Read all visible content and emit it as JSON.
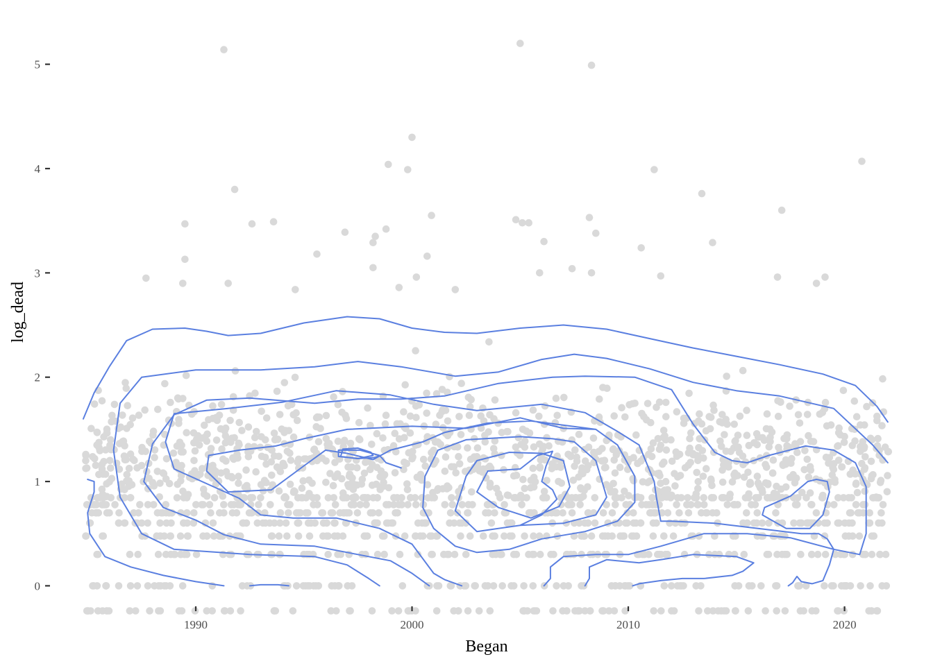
{
  "chart_data": {
    "type": "scatter",
    "overlay": "2d-density-contour",
    "xlabel": "Began",
    "ylabel": "log_dead",
    "xlim": [
      1984.8,
      2022.1
    ],
    "ylim": [
      -0.25,
      5.35
    ],
    "x_ticks": [
      1990,
      2000,
      2010,
      2020
    ],
    "y_ticks": [
      0,
      1,
      2,
      3,
      4,
      5
    ],
    "grid": false,
    "legend": "none",
    "colors": {
      "points": "#d9d9d9",
      "contour": "#5a7fe0",
      "text": "#4d4d4d"
    },
    "outlier_points": [
      [
        1991.3,
        5.14
      ],
      [
        2005.0,
        5.2
      ],
      [
        2008.3,
        4.99
      ],
      [
        2000.0,
        4.3
      ],
      [
        1998.9,
        4.04
      ],
      [
        1999.8,
        3.99
      ],
      [
        2020.8,
        4.07
      ],
      [
        2011.2,
        3.99
      ],
      [
        1991.8,
        3.8
      ],
      [
        1989.5,
        3.47
      ],
      [
        1992.6,
        3.47
      ],
      [
        1993.6,
        3.49
      ],
      [
        2013.4,
        3.76
      ],
      [
        2017.1,
        3.6
      ],
      [
        2000.9,
        3.55
      ],
      [
        1996.9,
        3.39
      ],
      [
        1998.3,
        3.35
      ],
      [
        1998.2,
        3.29
      ],
      [
        1998.8,
        3.42
      ],
      [
        2004.8,
        3.51
      ],
      [
        2005.1,
        3.48
      ],
      [
        2005.4,
        3.48
      ],
      [
        2008.2,
        3.53
      ],
      [
        2008.5,
        3.38
      ],
      [
        2013.9,
        3.29
      ],
      [
        2006.1,
        3.3
      ],
      [
        2005.9,
        3.0
      ],
      [
        2000.7,
        3.16
      ],
      [
        2010.6,
        3.24
      ],
      [
        1995.6,
        3.18
      ],
      [
        1989.5,
        3.13
      ],
      [
        1998.2,
        3.05
      ],
      [
        2016.9,
        2.96
      ],
      [
        2019.1,
        2.96
      ],
      [
        2018.7,
        2.9
      ],
      [
        1989.4,
        2.9
      ],
      [
        1987.7,
        2.95
      ],
      [
        1991.5,
        2.9
      ],
      [
        2000.2,
        2.96
      ],
      [
        2008.3,
        3.0
      ],
      [
        1994.6,
        2.84
      ],
      [
        1999.4,
        2.86
      ],
      [
        2002.0,
        2.84
      ],
      [
        2011.5,
        2.97
      ],
      [
        2007.4,
        3.04
      ]
    ],
    "contours": [
      {
        "level": 1,
        "points": [
          [
            1984.8,
            1.6
          ],
          [
            1985.3,
            1.85
          ],
          [
            1986.0,
            2.1
          ],
          [
            1986.8,
            2.35
          ],
          [
            1988.0,
            2.46
          ],
          [
            1989.5,
            2.47
          ],
          [
            1990.5,
            2.44
          ],
          [
            1991.5,
            2.4
          ],
          [
            1993.0,
            2.42
          ],
          [
            1995.0,
            2.52
          ],
          [
            1997.0,
            2.58
          ],
          [
            1998.5,
            2.56
          ],
          [
            2000.0,
            2.47
          ],
          [
            2001.5,
            2.43
          ],
          [
            2003.0,
            2.42
          ],
          [
            2005.0,
            2.47
          ],
          [
            2007.0,
            2.5
          ],
          [
            2009.0,
            2.46
          ],
          [
            2011.0,
            2.37
          ],
          [
            2013.0,
            2.28
          ],
          [
            2015.0,
            2.2
          ],
          [
            2017.0,
            2.12
          ],
          [
            2019.0,
            2.03
          ],
          [
            2020.5,
            1.92
          ],
          [
            2021.5,
            1.72
          ],
          [
            2022.0,
            1.57
          ]
        ]
      },
      {
        "level": 2,
        "points": [
          [
            1994.3,
            0.0
          ],
          [
            1993.8,
            0.01
          ],
          [
            1993.0,
            0.01
          ],
          [
            1992.5,
            0.0
          ]
        ]
      },
      {
        "level": 2,
        "points": [
          [
            1991.3,
            0.0
          ],
          [
            1990.0,
            0.04
          ],
          [
            1988.5,
            0.1
          ],
          [
            1987.0,
            0.18
          ],
          [
            1985.8,
            0.28
          ],
          [
            1985.1,
            0.5
          ],
          [
            1985.0,
            0.7
          ],
          [
            1985.3,
            0.9
          ],
          [
            1985.3,
            1.0
          ],
          [
            1985.0,
            1.02
          ]
        ]
      },
      {
        "level": 2,
        "points": [
          [
            1998.5,
            0.0
          ],
          [
            1998.0,
            0.07
          ],
          [
            1997.0,
            0.2
          ],
          [
            1995.5,
            0.28
          ],
          [
            1992.5,
            0.3
          ],
          [
            1989.0,
            0.35
          ],
          [
            1987.5,
            0.5
          ],
          [
            1986.5,
            0.85
          ],
          [
            1986.2,
            1.3
          ],
          [
            1986.5,
            1.75
          ],
          [
            1987.5,
            2.0
          ],
          [
            1990.0,
            2.07
          ],
          [
            1993.0,
            2.07
          ],
          [
            1995.5,
            2.1
          ],
          [
            1997.5,
            2.15
          ],
          [
            1999.5,
            2.1
          ],
          [
            2002.0,
            2.01
          ],
          [
            2004.0,
            2.05
          ],
          [
            2006.0,
            2.17
          ],
          [
            2007.5,
            2.22
          ],
          [
            2009.0,
            2.18
          ],
          [
            2011.0,
            2.08
          ],
          [
            2013.0,
            1.95
          ],
          [
            2015.0,
            1.87
          ],
          [
            2017.0,
            1.82
          ],
          [
            2019.5,
            1.7
          ],
          [
            2021.3,
            1.35
          ],
          [
            2022.0,
            1.18
          ]
        ]
      },
      {
        "level": 2,
        "points": [
          [
            2006.1,
            0.0
          ],
          [
            2006.4,
            0.07
          ],
          [
            2006.4,
            0.18
          ],
          [
            2007.0,
            0.28
          ],
          [
            2008.5,
            0.3
          ],
          [
            2010.0,
            0.3
          ],
          [
            2011.5,
            0.38
          ],
          [
            2013.5,
            0.5
          ],
          [
            2015.5,
            0.5
          ],
          [
            2017.5,
            0.46
          ],
          [
            2019.5,
            0.35
          ],
          [
            2020.7,
            0.3
          ],
          [
            2021.0,
            0.5
          ],
          [
            2021.0,
            0.95
          ],
          [
            2020.5,
            1.18
          ],
          [
            2019.5,
            1.3
          ],
          [
            2018.2,
            1.34
          ],
          [
            2016.5,
            1.25
          ],
          [
            2015.5,
            1.18
          ],
          [
            2014.8,
            1.2
          ],
          [
            2014.0,
            1.28
          ],
          [
            2013.0,
            1.55
          ],
          [
            2012.0,
            1.88
          ],
          [
            2010.3,
            2.0
          ],
          [
            2008.0,
            2.01
          ],
          [
            2006.5,
            2.0
          ],
          [
            2004.0,
            1.94
          ],
          [
            2001.5,
            1.82
          ],
          [
            1999.5,
            1.79
          ],
          [
            1997.5,
            1.79
          ],
          [
            1995.5,
            1.75
          ],
          [
            1992.5,
            1.8
          ],
          [
            1990.5,
            1.78
          ],
          [
            1989.0,
            1.64
          ],
          [
            1988.0,
            1.36
          ],
          [
            1987.6,
            1.0
          ],
          [
            1988.5,
            0.75
          ],
          [
            1990.0,
            0.63
          ],
          [
            1991.3,
            0.49
          ],
          [
            1993.0,
            0.4
          ],
          [
            1995.5,
            0.38
          ],
          [
            1997.5,
            0.3
          ],
          [
            1999.0,
            0.24
          ],
          [
            2000.0,
            0.12
          ],
          [
            2000.8,
            0.0
          ]
        ]
      },
      {
        "level": 3,
        "points": [
          [
            2008.0,
            0.0
          ],
          [
            2008.2,
            0.07
          ],
          [
            2008.2,
            0.18
          ],
          [
            2009.0,
            0.25
          ],
          [
            2010.5,
            0.22
          ],
          [
            2011.5,
            0.25
          ],
          [
            2013.0,
            0.3
          ],
          [
            2015.0,
            0.28
          ],
          [
            2015.8,
            0.22
          ],
          [
            2015.3,
            0.14
          ],
          [
            2014.8,
            0.1
          ],
          [
            2013.5,
            0.07
          ],
          [
            2012.5,
            0.07
          ],
          [
            2011.5,
            0.05
          ],
          [
            2010.5,
            0.02
          ],
          [
            2010.2,
            0.0
          ]
        ]
      },
      {
        "level": 3,
        "points": [
          [
            2002.3,
            0.0
          ],
          [
            2001.5,
            0.06
          ],
          [
            2001.0,
            0.12
          ],
          [
            2000.0,
            0.4
          ],
          [
            1998.5,
            0.55
          ],
          [
            1996.5,
            0.65
          ],
          [
            1994.5,
            0.65
          ],
          [
            1993.0,
            0.68
          ],
          [
            1992.0,
            0.84
          ],
          [
            1990.5,
            0.98
          ],
          [
            1989.0,
            1.12
          ],
          [
            1988.6,
            1.38
          ],
          [
            1989.0,
            1.65
          ],
          [
            1991.5,
            1.7
          ],
          [
            1994.0,
            1.76
          ],
          [
            1996.5,
            1.87
          ],
          [
            1999.0,
            1.83
          ],
          [
            2001.0,
            1.74
          ],
          [
            2003.0,
            1.68
          ],
          [
            2006.0,
            1.74
          ],
          [
            2008.0,
            1.66
          ],
          [
            2009.5,
            1.48
          ],
          [
            2010.5,
            1.35
          ],
          [
            2011.2,
            1.0
          ],
          [
            2011.3,
            0.85
          ],
          [
            2011.5,
            0.62
          ],
          [
            2012.0,
            0.62
          ],
          [
            2014.0,
            0.6
          ],
          [
            2016.0,
            0.55
          ],
          [
            2018.0,
            0.5
          ],
          [
            2018.8,
            0.5
          ],
          [
            2019.2,
            0.45
          ],
          [
            2019.5,
            0.35
          ],
          [
            2019.3,
            0.2
          ],
          [
            2019.0,
            0.05
          ],
          [
            2018.5,
            0.02
          ],
          [
            2018.0,
            0.04
          ],
          [
            2017.8,
            0.09
          ],
          [
            2017.6,
            0.03
          ],
          [
            2017.4,
            0.0
          ]
        ]
      },
      {
        "level": 3,
        "points": [
          [
            1998.1,
            1.28
          ],
          [
            1997.5,
            1.32
          ],
          [
            1996.8,
            1.31
          ],
          [
            1996.7,
            1.24
          ],
          [
            1997.5,
            1.22
          ],
          [
            1998.2,
            1.25
          ],
          [
            1998.1,
            1.28
          ]
        ]
      },
      {
        "level": 4,
        "points": [
          [
            2008.5,
            1.5
          ],
          [
            2005.5,
            1.58
          ],
          [
            2003.5,
            1.56
          ],
          [
            2001.5,
            1.47
          ],
          [
            2000.5,
            1.38
          ],
          [
            1999.0,
            1.3
          ],
          [
            1998.2,
            1.21
          ],
          [
            1997.0,
            1.27
          ],
          [
            1996.0,
            1.3
          ],
          [
            1995.0,
            1.15
          ],
          [
            1993.5,
            0.92
          ],
          [
            1991.5,
            0.9
          ],
          [
            1990.5,
            1.1
          ],
          [
            1990.6,
            1.25
          ],
          [
            1992.0,
            1.3
          ],
          [
            1993.7,
            1.34
          ],
          [
            1995.0,
            1.41
          ],
          [
            1997.0,
            1.5
          ],
          [
            2000.0,
            1.53
          ],
          [
            2002.5,
            1.51
          ],
          [
            2005.0,
            1.61
          ],
          [
            2007.0,
            1.51
          ],
          [
            2008.5,
            1.5
          ],
          [
            2009.5,
            1.35
          ],
          [
            2010.3,
            1.05
          ],
          [
            2010.3,
            0.8
          ],
          [
            2009.5,
            0.62
          ],
          [
            2008.0,
            0.52
          ],
          [
            2006.0,
            0.45
          ],
          [
            2004.5,
            0.35
          ],
          [
            2003.0,
            0.32
          ],
          [
            2002.0,
            0.38
          ],
          [
            2001.0,
            0.55
          ],
          [
            2000.5,
            0.75
          ],
          [
            2000.6,
            1.05
          ],
          [
            2001.2,
            1.3
          ],
          [
            2002.5,
            1.4
          ],
          [
            2005.0,
            1.43
          ],
          [
            2006.5,
            1.41
          ],
          [
            2007.5,
            1.38
          ],
          [
            2008.5,
            1.2
          ],
          [
            2009.0,
            0.85
          ],
          [
            2008.5,
            0.68
          ],
          [
            2007.0,
            0.6
          ],
          [
            2005.0,
            0.58
          ],
          [
            2003.0,
            0.52
          ],
          [
            2002.0,
            0.72
          ],
          [
            2002.5,
            1.05
          ],
          [
            2003.0,
            1.2
          ],
          [
            2004.5,
            1.28
          ],
          [
            2006.0,
            1.27
          ],
          [
            2007.0,
            1.2
          ],
          [
            2007.3,
            0.95
          ],
          [
            2006.8,
            0.76
          ],
          [
            2005.5,
            0.65
          ],
          [
            2004.0,
            0.75
          ],
          [
            2003.0,
            0.9
          ],
          [
            2003.5,
            1.1
          ],
          [
            2005.0,
            1.12
          ],
          [
            2005.8,
            1.25
          ],
          [
            2006.5,
            1.29
          ],
          [
            2006.2,
            1.15
          ],
          [
            2006.0,
            1.0
          ],
          [
            2006.5,
            0.92
          ],
          [
            2006.7,
            0.83
          ],
          [
            2006.0,
            0.68
          ],
          [
            2005.0,
            0.58
          ]
        ]
      },
      {
        "level": 4,
        "points": [
          [
            2018.3,
            1.0
          ],
          [
            2017.5,
            0.86
          ],
          [
            2016.3,
            0.75
          ],
          [
            2016.2,
            0.68
          ],
          [
            2017.3,
            0.55
          ],
          [
            2018.4,
            0.55
          ],
          [
            2019.0,
            0.68
          ],
          [
            2019.3,
            0.9
          ],
          [
            2019.2,
            1.0
          ],
          [
            2018.7,
            1.02
          ],
          [
            2018.3,
            1.0
          ]
        ]
      },
      {
        "level": 4,
        "points": [
          [
            1999.5,
            1.13
          ],
          [
            1998.8,
            1.18
          ],
          [
            1998.5,
            1.25
          ],
          [
            1997.6,
            1.3
          ],
          [
            1996.6,
            1.3
          ],
          [
            1996.6,
            1.24
          ],
          [
            1997.5,
            1.22
          ],
          [
            1998.3,
            1.23
          ],
          [
            1998.5,
            1.25
          ]
        ]
      }
    ]
  }
}
